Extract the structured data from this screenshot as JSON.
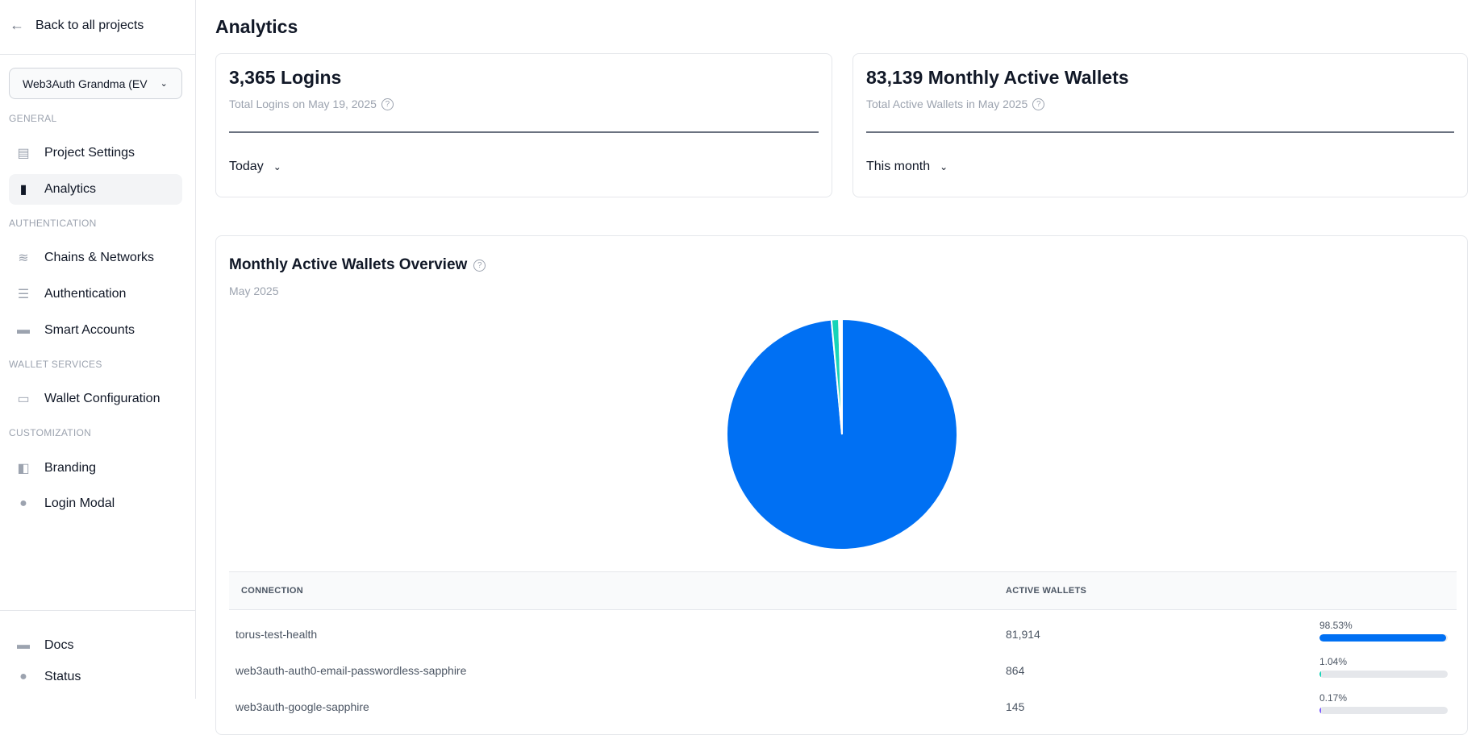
{
  "sidebar": {
    "back_label": "Back to all projects",
    "project_select": "Web3Auth Grandma (EV",
    "sections": [
      {
        "title": "GENERAL",
        "items": [
          {
            "label": "Project Settings",
            "icon": "clipboard-icon"
          },
          {
            "label": "Analytics",
            "icon": "chart-icon",
            "active": true
          }
        ]
      },
      {
        "title": "AUTHENTICATION",
        "items": [
          {
            "label": "Chains & Networks",
            "icon": "wifi-icon"
          },
          {
            "label": "Authentication",
            "icon": "database-icon"
          },
          {
            "label": "Smart Accounts",
            "icon": "document-icon"
          }
        ]
      },
      {
        "title": "WALLET SERVICES",
        "items": [
          {
            "label": "Wallet Configuration",
            "icon": "wallet-icon"
          }
        ]
      },
      {
        "title": "CUSTOMIZATION",
        "items": [
          {
            "label": "Branding",
            "icon": "palette-icon"
          },
          {
            "label": "Login Modal",
            "icon": "user-circle-icon"
          }
        ]
      }
    ],
    "footer": [
      {
        "label": "Docs",
        "icon": "document-icon"
      },
      {
        "label": "Status",
        "icon": "check-circle-icon"
      }
    ]
  },
  "page_title": "Analytics",
  "cards": [
    {
      "value": "3,365 Logins",
      "subtitle": "Total Logins on May 19, 2025",
      "period": "Today"
    },
    {
      "value": "83,139 Monthly Active Wallets",
      "subtitle": "Total Active Wallets in May 2025",
      "period": "This month"
    }
  ],
  "overview": {
    "title": "Monthly Active Wallets Overview",
    "subtitle": "May 2025",
    "columns": [
      "CONNECTION",
      "ACTIVE WALLETS"
    ],
    "rows": [
      {
        "connection": "torus-test-health",
        "wallets": "81,914",
        "percent": "98.53%",
        "value": 98.53,
        "color": "#0070f3"
      },
      {
        "connection": "web3auth-auth0-email-passwordless-sapphire",
        "wallets": "864",
        "percent": "1.04%",
        "value": 1.04,
        "color": "#17d4b8"
      },
      {
        "connection": "web3auth-google-sapphire",
        "wallets": "145",
        "percent": "0.17%",
        "value": 0.17,
        "color": "#7c5cff"
      }
    ]
  },
  "chart_data": {
    "type": "pie",
    "categories": [
      "torus-test-health",
      "web3auth-auth0-email-passwordless-sapphire",
      "web3auth-google-sapphire"
    ],
    "values": [
      98.53,
      1.04,
      0.17
    ],
    "colors": [
      "#0070f3",
      "#17d4b8",
      "#7c5cff"
    ]
  }
}
